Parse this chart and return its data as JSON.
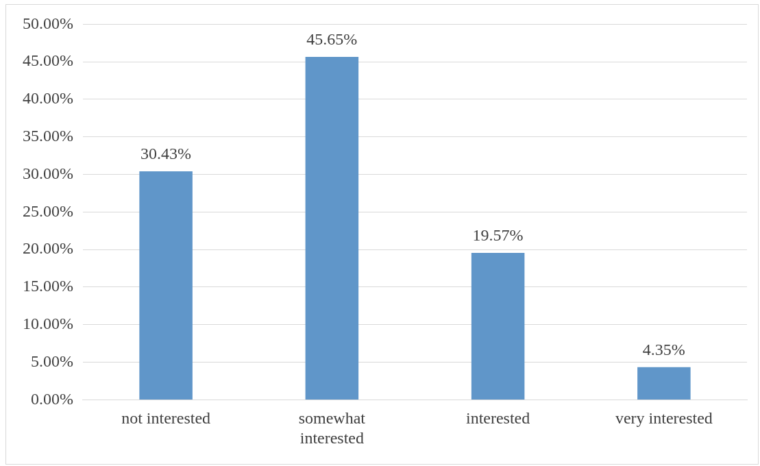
{
  "chart_data": {
    "type": "bar",
    "categories": [
      "not interested",
      "somewhat interested",
      "interested",
      "very interested"
    ],
    "values": [
      30.43,
      45.65,
      19.57,
      4.35
    ],
    "value_labels": [
      "30.43%",
      "45.65%",
      "19.57%",
      "4.35%"
    ],
    "color": "#6096c9",
    "ylim": [
      0,
      50
    ],
    "yticks": [
      {
        "value": 0,
        "label": "0.00%"
      },
      {
        "value": 5,
        "label": "5.00%"
      },
      {
        "value": 10,
        "label": "10.00%"
      },
      {
        "value": 15,
        "label": "15.00%"
      },
      {
        "value": 20,
        "label": "20.00%"
      },
      {
        "value": 25,
        "label": "25.00%"
      },
      {
        "value": 30,
        "label": "30.00%"
      },
      {
        "value": 35,
        "label": "35.00%"
      },
      {
        "value": 40,
        "label": "40.00%"
      },
      {
        "value": 45,
        "label": "45.00%"
      },
      {
        "value": 50,
        "label": "50.00%"
      }
    ],
    "grid": "y",
    "legend": false
  }
}
